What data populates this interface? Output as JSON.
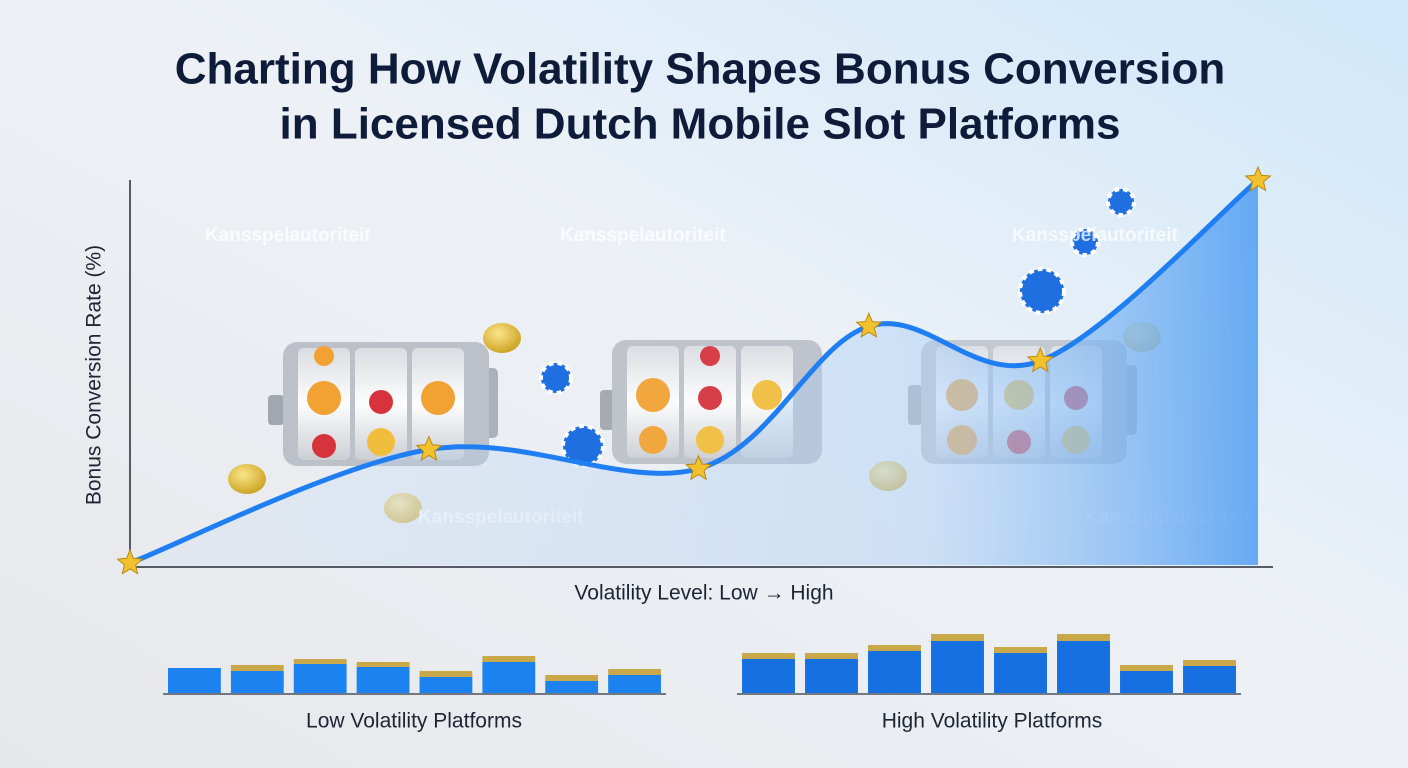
{
  "title": [
    "Charting How Volatility Shapes Bonus Conversion",
    "in Licensed Dutch Mobile Slot Platforms"
  ],
  "watermark": "Kansspelautoriteit",
  "chart_data": [
    {
      "type": "line",
      "ylabel": "Bonus Conversion Rate (%)",
      "xlabel": "Volatility Level: Low → High",
      "x": [
        0,
        26.5,
        50.4,
        65.5,
        80.7,
        100
      ],
      "values": [
        0.5,
        30,
        25,
        62,
        53,
        100
      ],
      "xlim": [
        0,
        100
      ],
      "ylim": [
        0,
        100
      ],
      "color": "#1f7ef2",
      "marker_color": "#f2c12e"
    },
    {
      "type": "bar",
      "xlabel": "Low Volatility Platforms",
      "categories": [
        null,
        null,
        null,
        null,
        null,
        null,
        null,
        null
      ],
      "series": [
        {
          "color": "#1c82f0",
          "values": [
            25,
            22,
            29,
            26,
            16,
            31,
            12,
            18
          ]
        },
        {
          "color": "#c9a84a",
          "values": [
            0,
            6,
            5,
            5,
            6,
            6,
            6,
            6
          ]
        }
      ],
      "ylim": [
        0,
        60
      ]
    },
    {
      "type": "bar",
      "xlabel": "High Volatility Platforms",
      "categories": [
        null,
        null,
        null,
        null,
        null,
        null,
        null,
        null
      ],
      "series": [
        {
          "color": "#1670e2",
          "values": [
            34,
            34,
            42,
            52,
            40,
            52,
            22,
            27
          ]
        },
        {
          "color": "#c9a84a",
          "values": [
            6,
            6,
            6,
            7,
            6,
            7,
            6,
            6
          ]
        }
      ],
      "ylim": [
        0,
        60
      ]
    }
  ]
}
